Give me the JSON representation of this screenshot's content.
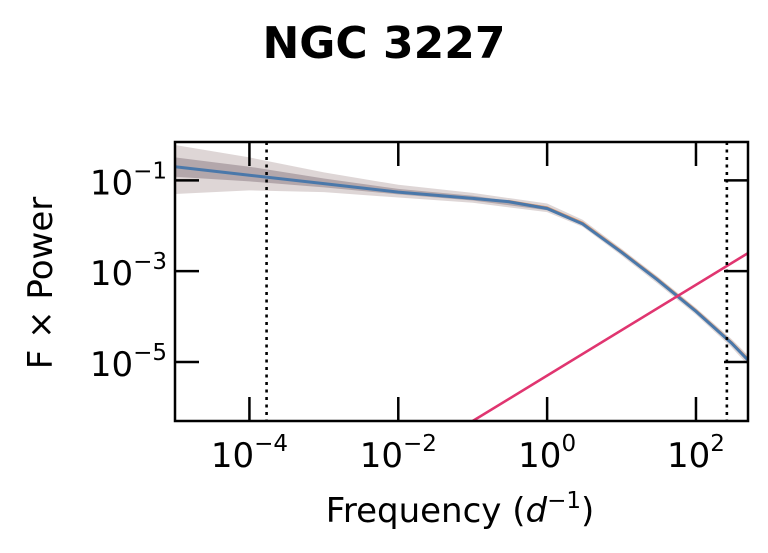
{
  "chart_data": {
    "type": "line",
    "title": "NGC 3227",
    "xlabel": "Frequency",
    "xlabel_unit_base": "d",
    "xlabel_unit_exp": "−1",
    "ylabel": "F × Power",
    "xscale": "log",
    "yscale": "log",
    "xlim": [
      1e-05,
      500
    ],
    "ylim": [
      5e-07,
      0.7
    ],
    "x_ticks": [
      {
        "value": 0.0001,
        "base": "10",
        "exp": "−4"
      },
      {
        "value": 0.01,
        "base": "10",
        "exp": "−2"
      },
      {
        "value": 1,
        "base": "10",
        "exp": "0"
      },
      {
        "value": 100,
        "base": "10",
        "exp": "2"
      }
    ],
    "y_ticks": [
      {
        "value": 0.1,
        "base": "10",
        "exp": "−1"
      },
      {
        "value": 0.001,
        "base": "10",
        "exp": "−3"
      },
      {
        "value": 1e-05,
        "base": "10",
        "exp": "−5"
      }
    ],
    "vlines": [
      0.00017,
      260
    ],
    "series": [
      {
        "role": "model_median",
        "color": "#4a78aa",
        "x": [
          1e-05,
          0.0001,
          0.001,
          0.01,
          0.1,
          0.3,
          1,
          3,
          10,
          30,
          100,
          300,
          500
        ],
        "y": [
          0.2,
          0.13,
          0.085,
          0.055,
          0.04,
          0.034,
          0.024,
          0.011,
          0.0026,
          0.00065,
          0.00013,
          2.6e-05,
          1.1e-05
        ]
      },
      {
        "role": "data_trace",
        "color": "#e8935a",
        "x": [
          0.3,
          1,
          3,
          10,
          30,
          100,
          300,
          500
        ],
        "y": [
          0.035,
          0.025,
          0.0115,
          0.0027,
          0.00068,
          0.000135,
          2.7e-05,
          1.15e-05
        ]
      },
      {
        "role": "noise",
        "color": "#e03570",
        "x": [
          0.1,
          500
        ],
        "y": [
          5e-07,
          0.0025
        ]
      }
    ],
    "bands": [
      {
        "color": "#8a6b6b",
        "opacity": 0.28,
        "x": [
          1e-05,
          0.0001,
          0.001,
          0.01,
          0.1,
          1,
          3,
          10,
          30,
          100,
          300,
          500
        ],
        "lo": [
          0.05,
          0.06,
          0.055,
          0.042,
          0.032,
          0.02,
          0.0095,
          0.0022,
          0.00054,
          0.00011,
          2.1e-05,
          8.5e-06
        ],
        "hi": [
          0.6,
          0.32,
          0.15,
          0.08,
          0.053,
          0.031,
          0.0135,
          0.0031,
          0.00078,
          0.000155,
          3.2e-05,
          1.4e-05
        ]
      },
      {
        "color": "#5a4550",
        "opacity": 0.32,
        "x": [
          1e-05,
          0.0001,
          0.001,
          0.01,
          0.1,
          1,
          3,
          10,
          30,
          100,
          300,
          500
        ],
        "lo": [
          0.12,
          0.095,
          0.07,
          0.049,
          0.036,
          0.022,
          0.0102,
          0.0024,
          0.0006,
          0.000121,
          2.4e-05,
          9.8e-06
        ],
        "hi": [
          0.32,
          0.2,
          0.11,
          0.065,
          0.046,
          0.027,
          0.0122,
          0.0028,
          0.0007,
          0.00014,
          2.9e-05,
          1.25e-05
        ]
      }
    ]
  }
}
